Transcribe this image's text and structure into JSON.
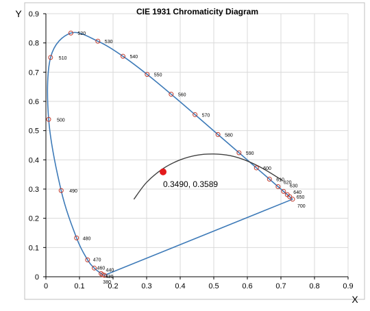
{
  "chart_data": {
    "type": "scatter",
    "title": "CIE 1931 Chromaticity Diagram",
    "xlabel": "X",
    "ylabel": "Y",
    "xlim": [
      0,
      0.9
    ],
    "ylim": [
      0,
      0.9
    ],
    "x_ticks": [
      "0",
      "0.1",
      "0.2",
      "0.3",
      "0.4",
      "0.5",
      "0.6",
      "0.7",
      "0.8",
      "0.9"
    ],
    "y_ticks": [
      "0",
      "0.1",
      "0.2",
      "0.3",
      "0.4",
      "0.5",
      "0.6",
      "0.7",
      "0.8",
      "0.9"
    ],
    "grid": true,
    "spectral_locus": [
      {
        "label": "380",
        "x": 0.1741,
        "y": 0.005
      },
      {
        "label": "430",
        "x": 0.1689,
        "y": 0.0069
      },
      {
        "label": "440",
        "x": 0.1644,
        "y": 0.0109
      },
      {
        "label": "460",
        "x": 0.144,
        "y": 0.0297
      },
      {
        "label": "470",
        "x": 0.1241,
        "y": 0.0578
      },
      {
        "label": "480",
        "x": 0.0913,
        "y": 0.1327
      },
      {
        "label": "490",
        "x": 0.0454,
        "y": 0.295
      },
      {
        "label": "500",
        "x": 0.0082,
        "y": 0.5384
      },
      {
        "label": "510",
        "x": 0.0139,
        "y": 0.7502
      },
      {
        "label": "520",
        "x": 0.0743,
        "y": 0.8338
      },
      {
        "label": "530",
        "x": 0.1547,
        "y": 0.8059
      },
      {
        "label": "540",
        "x": 0.2296,
        "y": 0.7543
      },
      {
        "label": "550",
        "x": 0.3016,
        "y": 0.6923
      },
      {
        "label": "560",
        "x": 0.3731,
        "y": 0.6245
      },
      {
        "label": "570",
        "x": 0.4441,
        "y": 0.5547
      },
      {
        "label": "580",
        "x": 0.5125,
        "y": 0.4866
      },
      {
        "label": "590",
        "x": 0.5752,
        "y": 0.4242
      },
      {
        "label": "600",
        "x": 0.627,
        "y": 0.3725
      },
      {
        "label": "610",
        "x": 0.6658,
        "y": 0.334
      },
      {
        "label": "620",
        "x": 0.6915,
        "y": 0.3083
      },
      {
        "label": "630",
        "x": 0.7079,
        "y": 0.292
      },
      {
        "label": "640",
        "x": 0.719,
        "y": 0.2809
      },
      {
        "label": "650",
        "x": 0.726,
        "y": 0.274
      },
      {
        "label": "700",
        "x": 0.7347,
        "y": 0.2653
      }
    ],
    "planckian_locus": [
      {
        "x": 0.262,
        "y": 0.265
      },
      {
        "x": 0.3,
        "y": 0.323
      },
      {
        "x": 0.349,
        "y": 0.37
      },
      {
        "x": 0.4,
        "y": 0.4
      },
      {
        "x": 0.45,
        "y": 0.416
      },
      {
        "x": 0.5,
        "y": 0.42
      },
      {
        "x": 0.55,
        "y": 0.414
      },
      {
        "x": 0.6,
        "y": 0.396
      },
      {
        "x": 0.65,
        "y": 0.368
      },
      {
        "x": 0.705,
        "y": 0.329
      }
    ],
    "highlight_point": {
      "x": 0.349,
      "y": 0.3589,
      "label": "0.3490, 0.3589"
    },
    "colors": {
      "locus": "#3d7ab8",
      "planckian": "#404040",
      "marker_stroke": "#c0392b",
      "highlight": "#e31a1c",
      "grid": "#d9d9d9",
      "axis": "#000000"
    }
  }
}
